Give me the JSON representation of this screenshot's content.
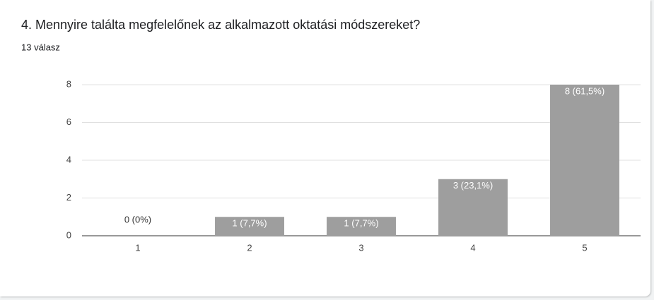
{
  "chart_data": {
    "type": "bar",
    "title": "4. Mennyire találta megfelelőnek az alkalmazott oktatási módszereket?",
    "subtitle": "13 válasz",
    "categories": [
      "1",
      "2",
      "3",
      "4",
      "5"
    ],
    "values": [
      0,
      1,
      1,
      3,
      8
    ],
    "value_labels": [
      "0 (0%)",
      "1 (7,7%)",
      "1 (7,7%)",
      "3 (23,1%)",
      "8 (61,5%)"
    ],
    "color": "#9e9e9e",
    "ylim": [
      0,
      8
    ],
    "yticks": [
      0,
      2,
      4,
      6,
      8
    ],
    "grid": true
  }
}
